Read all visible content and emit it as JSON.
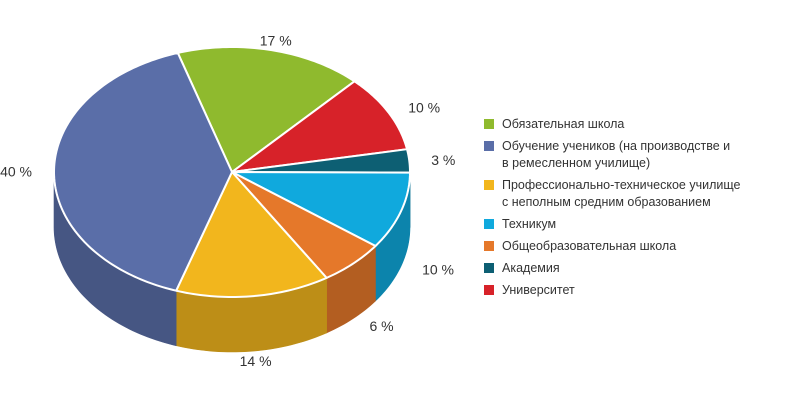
{
  "chart_data": {
    "type": "pie",
    "style": "3d",
    "slices": [
      {
        "label": "Обязательная школа",
        "value": 17,
        "value_label": "17 %",
        "color": "#8fba2e"
      },
      {
        "label": "Университет",
        "value": 10,
        "value_label": "10 %",
        "color": "#d72229"
      },
      {
        "label": "Академия",
        "value": 3,
        "value_label": "3 %",
        "color": "#0d5f73"
      },
      {
        "label": "Техникум",
        "value": 10,
        "value_label": "10 %",
        "color": "#10a9dd"
      },
      {
        "label": "Общеобразовательная школа",
        "value": 6,
        "value_label": "6 %",
        "color": "#e5782a"
      },
      {
        "label": "Профессионально-техническое училище\nс неполным средним образованием",
        "value": 14,
        "value_label": "14 %",
        "color": "#f2b61d"
      },
      {
        "label": "Обучение учеников (на производстве и\nв ремесленном училище)",
        "value": 40,
        "value_label": "40 %",
        "color": "#5a6ea8"
      }
    ],
    "legend": {
      "placement": "right",
      "entries": [
        {
          "label": "Обязательная школа",
          "color": "#8fba2e"
        },
        {
          "label": "Обучение учеников (на производстве и\nв ремесленном училище)",
          "color": "#5a6ea8"
        },
        {
          "label": "Профессионально-техническое училище\nс неполным средним образованием",
          "color": "#f2b61d"
        },
        {
          "label": "Техникум",
          "color": "#10a9dd"
        },
        {
          "label": "Общеобразовательная школа",
          "color": "#e5782a"
        },
        {
          "label": "Академия",
          "color": "#0d5f73"
        },
        {
          "label": "Университет",
          "color": "#d72229"
        }
      ]
    }
  }
}
